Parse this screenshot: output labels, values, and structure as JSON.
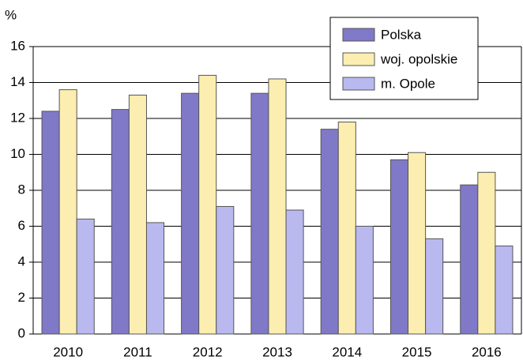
{
  "chart_data": {
    "type": "bar",
    "y_label": "%",
    "categories": [
      "2010",
      "2011",
      "2012",
      "2013",
      "2014",
      "2015",
      "2016"
    ],
    "series": [
      {
        "name": "Polska",
        "color": "#8079c8",
        "values": [
          12.4,
          12.5,
          13.4,
          13.4,
          11.4,
          9.7,
          8.3
        ]
      },
      {
        "name": "woj. opolskie",
        "color": "#fbeeb0",
        "values": [
          13.6,
          13.3,
          14.4,
          14.2,
          11.8,
          10.1,
          9.0
        ]
      },
      {
        "name": "m. Opole",
        "color": "#b9b9f0",
        "values": [
          6.4,
          6.2,
          7.1,
          6.9,
          6.0,
          5.3,
          4.9
        ]
      }
    ],
    "ylim": [
      0,
      16
    ],
    "yticks": [
      0,
      2,
      4,
      6,
      8,
      10,
      12,
      14,
      16
    ],
    "grid": true,
    "legend": "upper right"
  }
}
